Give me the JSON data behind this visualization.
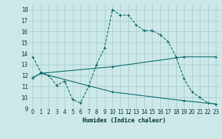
{
  "background_color": "#cde8e8",
  "grid_color": "#a8cccc",
  "line_color": "#006666",
  "xlabel": "Humidex (Indice chaleur)",
  "xlim": [
    -0.5,
    23.5
  ],
  "ylim": [
    9,
    18.5
  ],
  "yticks": [
    9,
    10,
    11,
    12,
    13,
    14,
    15,
    16,
    17,
    18
  ],
  "xticks": [
    0,
    1,
    2,
    3,
    4,
    5,
    6,
    7,
    8,
    9,
    10,
    11,
    12,
    13,
    14,
    15,
    16,
    17,
    18,
    19,
    20,
    21,
    22,
    23
  ],
  "line1_x": [
    0,
    1,
    2,
    3,
    4,
    5,
    6,
    7,
    8,
    9,
    10,
    11,
    12,
    13,
    14,
    15,
    16,
    17,
    18,
    19,
    20,
    21,
    22,
    23
  ],
  "line1_y": [
    13.7,
    12.3,
    12.0,
    11.1,
    11.5,
    9.8,
    9.5,
    11.0,
    13.0,
    14.5,
    18.0,
    17.5,
    17.5,
    16.6,
    16.1,
    16.1,
    15.7,
    15.1,
    13.7,
    11.7,
    10.5,
    10.0,
    9.5,
    9.4
  ],
  "line2_x": [
    0,
    1,
    10,
    19,
    23
  ],
  "line2_y": [
    11.8,
    12.2,
    12.8,
    13.7,
    13.7
  ],
  "line3_x": [
    0,
    1,
    10,
    19,
    23
  ],
  "line3_y": [
    11.8,
    12.2,
    10.5,
    9.7,
    9.4
  ],
  "tick_fontsize": 5.5,
  "xlabel_fontsize": 6.0
}
